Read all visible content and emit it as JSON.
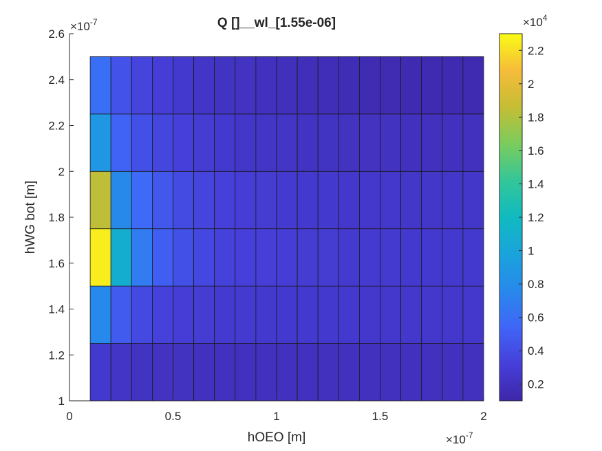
{
  "chart_data": {
    "type": "heatmap",
    "title": "Q []__wl_[1.55e-06]",
    "xlabel": "hOEO [m]",
    "ylabel": "hWG bot [m]",
    "x_exponent_label": "×10",
    "x_exponent": "-7",
    "y_exponent_label": "×10",
    "y_exponent": "-7",
    "xlim": [
      0,
      2
    ],
    "ylim": [
      1,
      2.6
    ],
    "x_ticks": [
      "0",
      "0.5",
      "1",
      "1.5",
      "2"
    ],
    "y_ticks": [
      "1",
      "1.2",
      "1.4",
      "1.6",
      "1.8",
      "2",
      "2.2",
      "2.4",
      "2.6"
    ],
    "x_edges": [
      0.1,
      0.2,
      0.3,
      0.4,
      0.5,
      0.6,
      0.7,
      0.8,
      0.9,
      1.0,
      1.1,
      1.2,
      1.3,
      1.4,
      1.5,
      1.6,
      1.7,
      1.8,
      1.9,
      2.0
    ],
    "y_edges": [
      1.0,
      1.25,
      1.5,
      1.75,
      2.0,
      2.25,
      2.5
    ],
    "values": [
      [
        2700,
        2300,
        2200,
        2100,
        2100,
        2000,
        2000,
        2000,
        2000,
        2000,
        2000,
        2000,
        2000,
        2000,
        2000,
        2000,
        2000,
        2000,
        2000
      ],
      [
        7600,
        4800,
        3800,
        3300,
        3000,
        2900,
        2800,
        2800,
        2700,
        2700,
        2700,
        2700,
        2700,
        2600,
        2600,
        2600,
        2600,
        2600,
        2600
      ],
      [
        22500,
        10800,
        6800,
        5000,
        4200,
        3700,
        3400,
        3200,
        3100,
        3000,
        2900,
        2900,
        2800,
        2800,
        2800,
        2700,
        2700,
        2700,
        2700
      ],
      [
        18400,
        7700,
        5700,
        4600,
        3900,
        3500,
        3200,
        3000,
        2900,
        2800,
        2700,
        2700,
        2600,
        2600,
        2600,
        2500,
        2500,
        2500,
        2500
      ],
      [
        8800,
        5300,
        4200,
        3600,
        3200,
        2900,
        2700,
        2500,
        2400,
        2300,
        2200,
        2200,
        2100,
        2100,
        2100,
        2000,
        2000,
        2000,
        2000
      ],
      [
        6000,
        4300,
        3500,
        3000,
        2700,
        2400,
        2200,
        2100,
        2000,
        1900,
        1800,
        1700,
        1600,
        1500,
        1500,
        1400,
        1400,
        1400,
        1400
      ]
    ],
    "colorbar": {
      "min": 1000,
      "max": 23000,
      "ticks": [
        "0.2",
        "0.4",
        "0.6",
        "0.8",
        "1",
        "1.2",
        "1.4",
        "1.6",
        "1.8",
        "2",
        "2.2"
      ],
      "tick_values": [
        0.2,
        0.4,
        0.6,
        0.8,
        1.0,
        1.2,
        1.4,
        1.6,
        1.8,
        2.0,
        2.2
      ],
      "exponent_label": "×10",
      "exponent": "4",
      "colormap": "parula"
    },
    "grid": false
  }
}
